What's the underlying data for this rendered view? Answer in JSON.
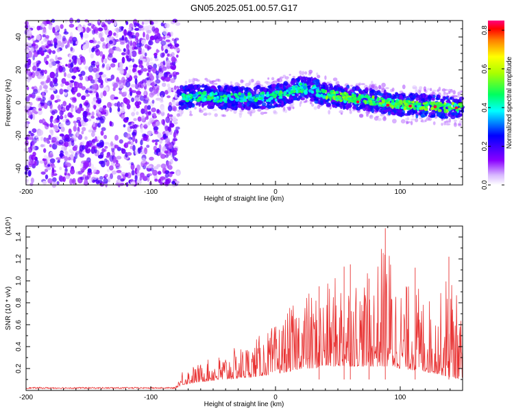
{
  "title": "GN05.2025.051.00.57.G17",
  "chart_data": [
    {
      "type": "heatmap",
      "xlabel": "Height of straight line (km)",
      "ylabel": "Frequency (Hz)",
      "xlim": [
        -200,
        150
      ],
      "ylim": [
        -50,
        50
      ],
      "xticks": [
        -200,
        -100,
        0,
        100
      ],
      "yticks": [
        -40,
        -20,
        0,
        20,
        40
      ],
      "xtick_labels": [
        "-200",
        "-100",
        "0",
        "100"
      ],
      "ytick_labels": [
        "-40",
        "-20",
        "0",
        "20",
        "40"
      ],
      "colorbar": {
        "label": "Normalized spectral amplitude",
        "range": [
          0,
          0.85
        ],
        "ticks": [
          0,
          0.2,
          0.4,
          0.6,
          0.8
        ],
        "tick_labels": [
          "0.0",
          "0.2",
          "0.4",
          "0.6",
          "0.8"
        ],
        "colors": [
          "#ffffff",
          "#8a00ff",
          "#0000ff",
          "#00ffff",
          "#00ff00",
          "#ffff00",
          "#ff0000",
          "#ff0080"
        ]
      },
      "noise_region_x": [
        -200,
        -78
      ],
      "signal_ridge": {
        "x": [
          -78,
          -60,
          -40,
          -20,
          0,
          10,
          20,
          30,
          40,
          60,
          80,
          100,
          120,
          150
        ],
        "frequency": [
          3,
          4,
          3,
          3,
          4,
          6,
          9,
          8,
          5,
          3,
          1,
          -1,
          -2,
          -3
        ]
      }
    },
    {
      "type": "line",
      "xlabel": "Height of straight line (km)",
      "ylabel": "SNR (10 * v/v)",
      "scale_label": "(x10⁴)",
      "xlim": [
        -200,
        150
      ],
      "ylim": [
        0,
        1.5
      ],
      "xticks": [
        -200,
        -100,
        0,
        100
      ],
      "yticks": [
        0.2,
        0.4,
        0.6,
        0.8,
        1.0,
        1.2,
        1.4
      ],
      "xtick_labels": [
        "-200",
        "-100",
        "0",
        "100"
      ],
      "ytick_labels": [
        "0.2",
        "0.4",
        "0.6",
        "0.8",
        "1.0",
        "1.2",
        "1.4"
      ],
      "color": "#e83030",
      "envelope": {
        "x": [
          -200,
          -80,
          -75,
          -60,
          -40,
          -20,
          0,
          15,
          20,
          30,
          40,
          55,
          70,
          80,
          88,
          100,
          115,
          130,
          140,
          150
        ],
        "baseline": [
          0.02,
          0.02,
          0.05,
          0.08,
          0.1,
          0.12,
          0.15,
          0.18,
          0.2,
          0.2,
          0.22,
          0.22,
          0.22,
          0.22,
          0.22,
          0.2,
          0.18,
          0.15,
          0.12,
          0.1
        ],
        "peak": [
          0.03,
          0.04,
          0.2,
          0.25,
          0.35,
          0.45,
          0.6,
          0.8,
          0.95,
          0.9,
          0.95,
          1.15,
          1.05,
          1.1,
          1.48,
          1.0,
          0.95,
          0.8,
          1.22,
          0.6
        ]
      }
    }
  ]
}
